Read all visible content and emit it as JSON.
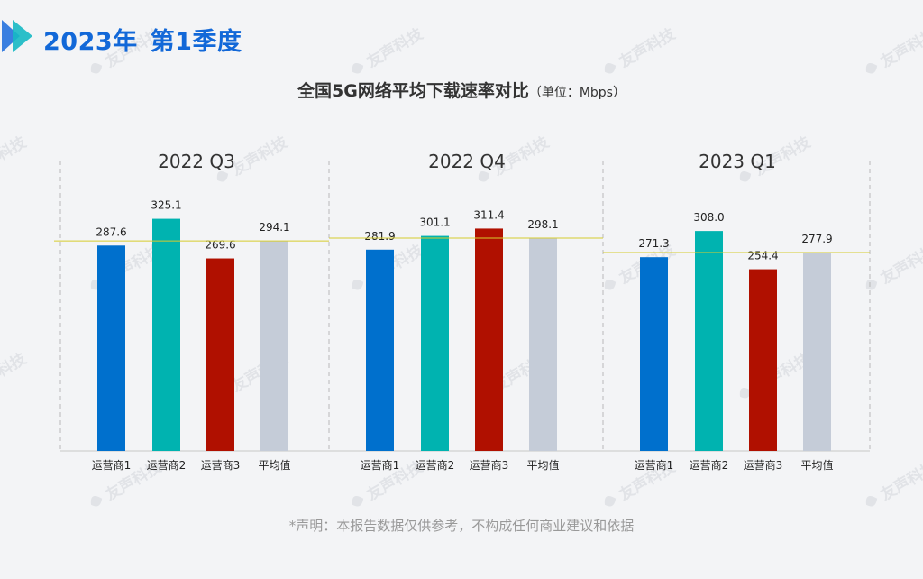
{
  "header": {
    "year_label": "2023年",
    "quarter_label": "第1季度"
  },
  "title": "全国5G网络平均下载速率对比",
  "unit": "（单位：Mbps）",
  "disclaimer": "*声明：本报告数据仅供参考，不构成任何商业建议和依据",
  "watermark": "友声科技",
  "colors": {
    "operator1": "#0070cd",
    "operator2": "#00b3b0",
    "operator3": "#b01000",
    "average": "#c5ccd8",
    "avg_line": "#d6cc2e",
    "header_blue": "#1268d8"
  },
  "chart_data": {
    "type": "bar",
    "ylim": [
      0,
      360
    ],
    "categories": [
      "运营商1",
      "运营商2",
      "运营商3",
      "平均值"
    ],
    "panels": [
      {
        "title": "2022 Q3",
        "values": [
          287.6,
          325.1,
          269.6,
          294.1
        ],
        "labels": [
          "287.6",
          "325.1",
          "269.6",
          "294.1"
        ]
      },
      {
        "title": "2022 Q4",
        "values": [
          281.9,
          301.1,
          311.4,
          298.1
        ],
        "labels": [
          "281.9",
          "301.1",
          "311.4",
          "298.1"
        ]
      },
      {
        "title": "2023 Q1",
        "values": [
          271.3,
          308.0,
          254.4,
          277.9
        ],
        "labels": [
          "271.3",
          "308.0",
          "254.4",
          "277.9"
        ]
      }
    ],
    "reference_line": "平均值",
    "grid": false
  }
}
